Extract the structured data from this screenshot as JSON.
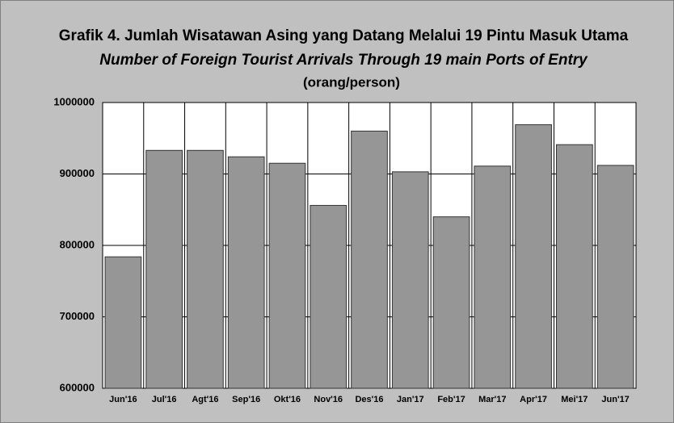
{
  "chart_data": {
    "type": "bar",
    "title": "Grafik  4. Jumlah Wisatawan Asing yang Datang Melalui 19 Pintu Masuk Utama",
    "subtitle": "Number of Foreign Tourist Arrivals Through 19 main Ports of Entry",
    "unit": "(orang/person)",
    "categories": [
      "Jun'16",
      "Jul'16",
      "Agt'16",
      "Sep'16",
      "Okt'16",
      "Nov'16",
      "Des'16",
      "Jan'17",
      "Feb'17",
      "Mar'17",
      "Apr'17",
      "Mei'17",
      "Jun'17"
    ],
    "values": [
      784000,
      933000,
      933000,
      924000,
      915000,
      856000,
      960000,
      903000,
      840000,
      911000,
      969000,
      941000,
      912000
    ],
    "color": "#969696",
    "ylim": [
      600000,
      1000000
    ],
    "yticks": [
      600000,
      700000,
      800000,
      900000,
      1000000
    ],
    "grid": true
  }
}
